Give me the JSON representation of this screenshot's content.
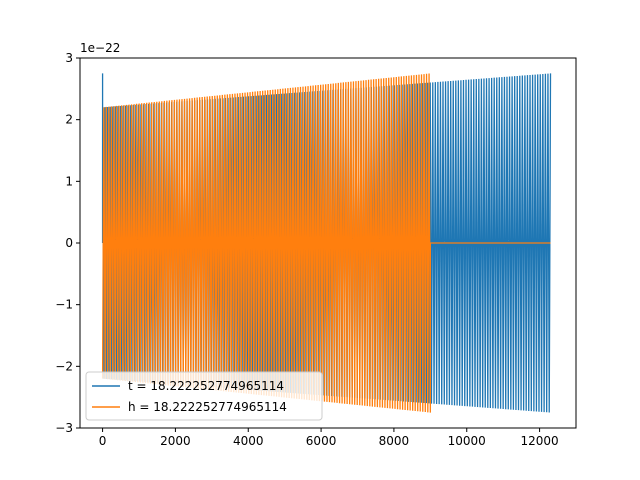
{
  "chart_data": {
    "type": "line",
    "title": "",
    "xlabel": "",
    "ylabel": "",
    "xlim": [
      -620,
      13000
    ],
    "ylim": [
      -3e-22,
      3e-22
    ],
    "x_ticks": [
      0,
      2000,
      4000,
      6000,
      8000,
      10000,
      12000
    ],
    "x_tick_labels": [
      "0",
      "2000",
      "4000",
      "6000",
      "8000",
      "10000",
      "12000"
    ],
    "y_ticks": [
      -3e-22,
      -2e-22,
      -1e-22,
      0,
      1e-22,
      2e-22,
      3e-22
    ],
    "y_tick_labels": [
      "−3",
      "−2",
      "−1",
      "0",
      "1",
      "2",
      "3"
    ],
    "y_offset_label": "1e−22",
    "grid": false,
    "legend_position": "lower-left",
    "series": [
      {
        "name": "t = 18.222252774965114",
        "color": "#1f77b4",
        "x_range": [
          0,
          12300
        ],
        "cycles": 175,
        "envelope": [
          {
            "x": 0,
            "amplitude": 2.2e-22
          },
          {
            "x": 12300,
            "amplitude": 2.75e-22
          }
        ],
        "initial_spike": 2.75e-22
      },
      {
        "name": "h = 18.222252774965114",
        "color": "#ff7f0e",
        "x_range": [
          0,
          9000
        ],
        "cycles": 130,
        "envelope": [
          {
            "x": 0,
            "amplitude": 2.2e-22
          },
          {
            "x": 9000,
            "amplitude": 2.75e-22
          }
        ],
        "flat_after": {
          "x_start": 9000,
          "x_end": 12300,
          "value": 0
        }
      }
    ]
  }
}
